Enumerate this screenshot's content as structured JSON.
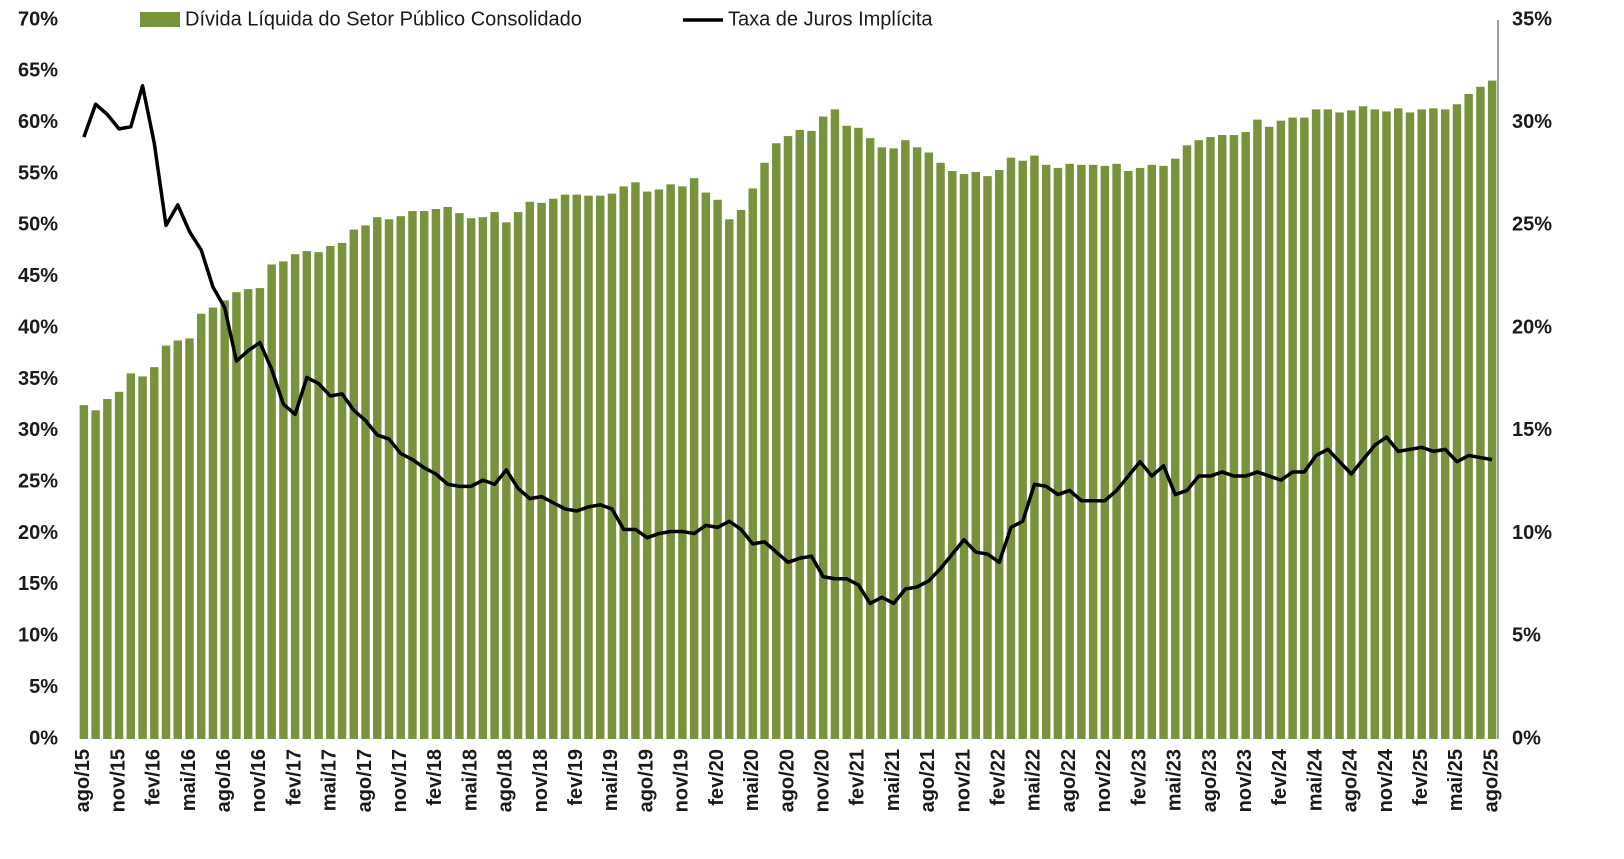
{
  "chart_data": {
    "type": "bar",
    "categories": [
      "ago/15",
      null,
      null,
      "nov/15",
      null,
      null,
      "fev/16",
      null,
      null,
      "mai/16",
      null,
      null,
      "ago/16",
      null,
      null,
      "nov/16",
      null,
      null,
      "fev/17",
      null,
      null,
      "mai/17",
      null,
      null,
      "ago/17",
      null,
      null,
      "nov/17",
      null,
      null,
      "fev/18",
      null,
      null,
      "mai/18",
      null,
      null,
      "ago/18",
      null,
      null,
      "nov/18",
      null,
      null,
      "fev/19",
      null,
      null,
      "mai/19",
      null,
      null,
      "ago/19",
      null,
      null,
      "nov/19",
      null,
      null,
      "fev/20",
      null,
      null,
      "mai/20",
      null,
      null,
      "ago/20",
      null,
      null,
      "nov/20",
      null,
      null,
      "fev/21",
      null,
      null,
      "mai/21",
      null,
      null,
      "ago/21",
      null,
      null,
      "nov/21",
      null,
      null,
      "fev/22",
      null,
      null,
      "mai/22",
      null,
      null,
      "ago/22",
      null,
      null,
      "nov/22",
      null,
      null,
      "fev/23",
      null,
      null,
      "mai/23",
      null,
      null,
      "ago/23",
      null,
      null,
      "nov/23",
      null,
      null,
      "fev/24",
      null,
      null,
      "mai/24",
      null,
      null,
      "ago/24",
      null,
      null,
      "nov/24",
      null,
      null,
      "fev/25",
      null,
      null,
      "mai/25",
      null,
      null,
      "ago/25"
    ],
    "series": [
      {
        "name": "Dívida Líquida do Setor Público Consolidado",
        "type": "bar",
        "color": "#77933c",
        "values": [
          32.5,
          32.0,
          33.1,
          33.8,
          35.6,
          35.3,
          36.2,
          38.3,
          38.8,
          39.0,
          41.4,
          42.0,
          42.7,
          43.5,
          43.8,
          43.9,
          46.2,
          46.5,
          47.2,
          47.5,
          47.4,
          48.0,
          48.3,
          49.6,
          50.0,
          50.8,
          50.6,
          50.9,
          51.4,
          51.4,
          51.6,
          51.8,
          51.2,
          50.7,
          50.8,
          51.3,
          50.3,
          51.3,
          52.3,
          52.2,
          52.6,
          53.0,
          53.0,
          52.9,
          52.9,
          53.1,
          53.8,
          54.2,
          53.3,
          53.5,
          54.0,
          53.8,
          54.6,
          53.2,
          52.5,
          50.6,
          51.5,
          53.6,
          56.1,
          58.0,
          58.7,
          59.3,
          59.2,
          60.6,
          61.3,
          59.7,
          59.5,
          58.5,
          57.6,
          57.5,
          58.3,
          57.6,
          57.1,
          56.1,
          55.3,
          55.0,
          55.2,
          54.8,
          55.4,
          56.6,
          56.3,
          56.8,
          55.9,
          55.6,
          56.0,
          55.9,
          55.9,
          55.8,
          56.0,
          55.3,
          55.6,
          55.9,
          55.8,
          56.5,
          57.8,
          58.3,
          58.6,
          58.8,
          58.8,
          59.1,
          60.3,
          59.6,
          60.2,
          60.5,
          60.5,
          61.3,
          61.3,
          61.0,
          61.2,
          61.6,
          61.3,
          61.1,
          61.4,
          61.0,
          61.3,
          61.4,
          61.3,
          61.8,
          62.8,
          63.5,
          64.1
        ]
      },
      {
        "name": "Taxa de Juros Implícita",
        "type": "line",
        "axis": "y2",
        "color": "#000000",
        "values": [
          29.3,
          30.9,
          30.4,
          29.7,
          29.8,
          31.8,
          29.0,
          25.0,
          26.0,
          24.7,
          23.8,
          22.0,
          21.0,
          18.4,
          18.9,
          19.3,
          18.0,
          16.3,
          15.8,
          17.6,
          17.3,
          16.7,
          16.8,
          16.0,
          15.5,
          14.8,
          14.6,
          13.9,
          13.6,
          13.2,
          12.9,
          12.4,
          12.3,
          12.3,
          12.6,
          12.4,
          13.1,
          12.2,
          11.7,
          11.8,
          11.5,
          11.2,
          11.1,
          11.3,
          11.4,
          11.2,
          10.2,
          10.2,
          9.8,
          10.0,
          10.1,
          10.1,
          10.0,
          10.4,
          10.3,
          10.6,
          10.2,
          9.5,
          9.6,
          9.1,
          8.6,
          8.8,
          8.9,
          7.9,
          7.8,
          7.8,
          7.5,
          6.6,
          6.9,
          6.6,
          7.3,
          7.4,
          7.7,
          8.3,
          9.0,
          9.7,
          9.1,
          9.0,
          8.6,
          10.3,
          10.6,
          12.4,
          12.3,
          11.9,
          12.1,
          11.6,
          11.6,
          11.6,
          12.1,
          12.8,
          13.5,
          12.8,
          13.3,
          11.9,
          12.1,
          12.8,
          12.8,
          13.0,
          12.8,
          12.8,
          13.0,
          12.8,
          12.6,
          13.0,
          13.0,
          13.8,
          14.1,
          13.5,
          12.9,
          13.6,
          14.3,
          14.7,
          14.0,
          14.1,
          14.2,
          14.0,
          14.1,
          13.5,
          13.8,
          13.7,
          13.6
        ]
      }
    ],
    "ylim": [
      0,
      70
    ],
    "yticks": [
      {
        "value": 0,
        "label": "0%"
      },
      {
        "value": 5,
        "label": "5%"
      },
      {
        "value": 10,
        "label": "10%"
      },
      {
        "value": 15,
        "label": "15%"
      },
      {
        "value": 20,
        "label": "20%"
      },
      {
        "value": 25,
        "label": "25%"
      },
      {
        "value": 30,
        "label": "30%"
      },
      {
        "value": 35,
        "label": "35%"
      },
      {
        "value": 40,
        "label": "40%"
      },
      {
        "value": 45,
        "label": "45%"
      },
      {
        "value": 50,
        "label": "50%"
      },
      {
        "value": 55,
        "label": "55%"
      },
      {
        "value": 60,
        "label": "60%"
      },
      {
        "value": 65,
        "label": "65%"
      },
      {
        "value": 70,
        "label": "70%"
      }
    ],
    "y2lim": [
      0,
      35
    ],
    "y2ticks": [
      {
        "value": 0,
        "label": "0%"
      },
      {
        "value": 5,
        "label": "5%"
      },
      {
        "value": 10,
        "label": "10%"
      },
      {
        "value": 15,
        "label": "15%"
      },
      {
        "value": 20,
        "label": "20%"
      },
      {
        "value": 25,
        "label": "25%"
      },
      {
        "value": 30,
        "label": "30%"
      },
      {
        "value": 35,
        "label": "35%"
      }
    ],
    "legend": "top"
  }
}
